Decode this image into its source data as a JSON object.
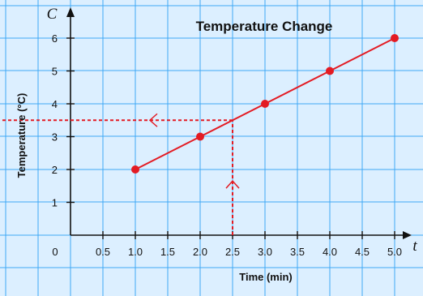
{
  "chart_data": {
    "type": "line",
    "title": "Temperature Change",
    "xlabel": "Time (min)",
    "ylabel": "Temperature (°C)",
    "x_axis_letter": "t",
    "y_axis_letter": "C",
    "origin_label": "0",
    "x_ticks": [
      "0.5",
      "1.0",
      "1.5",
      "2.0",
      "2.5",
      "3.0",
      "3.5",
      "4.0",
      "4.5",
      "5.0"
    ],
    "y_ticks": [
      "1",
      "2",
      "3",
      "4",
      "5",
      "6"
    ],
    "xlim": [
      0,
      5.5
    ],
    "ylim": [
      0,
      6.5
    ],
    "grid": true,
    "series": [
      {
        "x": [
          1.0,
          2.0,
          3.0,
          4.0,
          5.0
        ],
        "y": [
          2,
          3,
          4,
          5,
          6
        ],
        "color": "#e31b23"
      }
    ],
    "annotations": [
      {
        "type": "dashed-vertical-arrow-up",
        "x": 2.5,
        "from_y": 0,
        "to_y": 3.5
      },
      {
        "type": "dashed-horizontal-arrow-left",
        "y": 3.5,
        "from_x": 2.5,
        "to_x": 0
      }
    ],
    "colors": {
      "background": "#dcefff",
      "grid": "#3fa9f5",
      "axis": "#111111",
      "data": "#e31b23"
    }
  }
}
